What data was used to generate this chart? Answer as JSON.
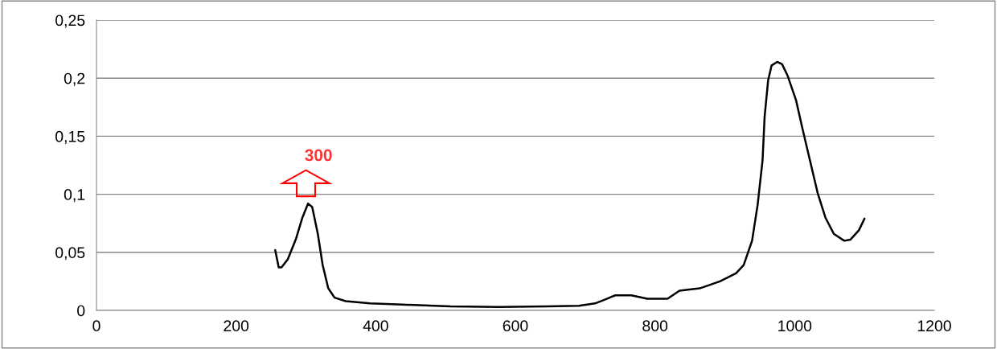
{
  "chart_data": {
    "type": "line",
    "series": [
      {
        "color": "#000000",
        "x": [
          256,
          261,
          265,
          274,
          286,
          295,
          303,
          309,
          317,
          324,
          332,
          341,
          357,
          392,
          438,
          507,
          576,
          645,
          691,
          714,
          731,
          743,
          766,
          789,
          818,
          835,
          864,
          893,
          916,
          927,
          939,
          947,
          954,
          957,
          962,
          967,
          975,
          982,
          990,
          1002,
          1011,
          1022,
          1033,
          1044,
          1056,
          1071,
          1080,
          1092,
          1100
        ],
        "values": [
          0.052,
          0.037,
          0.037,
          0.044,
          0.062,
          0.08,
          0.092,
          0.089,
          0.066,
          0.039,
          0.019,
          0.011,
          0.008,
          0.006,
          0.005,
          0.0035,
          0.003,
          0.0035,
          0.004,
          0.006,
          0.01,
          0.013,
          0.013,
          0.01,
          0.01,
          0.017,
          0.019,
          0.025,
          0.032,
          0.039,
          0.06,
          0.091,
          0.129,
          0.167,
          0.198,
          0.211,
          0.214,
          0.212,
          0.202,
          0.181,
          0.157,
          0.129,
          0.101,
          0.08,
          0.066,
          0.06,
          0.061,
          0.069,
          0.079
        ]
      }
    ],
    "xlim": [
      0,
      1200
    ],
    "xticks": [
      0,
      200,
      400,
      600,
      800,
      1000,
      1200
    ],
    "ylim": [
      0,
      0.25
    ],
    "yticks": [
      {
        "value": 0,
        "label": "0"
      },
      {
        "value": 0.05,
        "label": "0,05"
      },
      {
        "value": 0.1,
        "label": "0,1"
      },
      {
        "value": 0.15,
        "label": "0,15"
      },
      {
        "value": 0.2,
        "label": "0,2"
      },
      {
        "value": 0.25,
        "label": "0,25"
      }
    ],
    "grid": "y",
    "marker": "none",
    "line_style": "solid",
    "annotations": [
      {
        "text": "300",
        "x": 300,
        "y": 0.092
      }
    ]
  }
}
